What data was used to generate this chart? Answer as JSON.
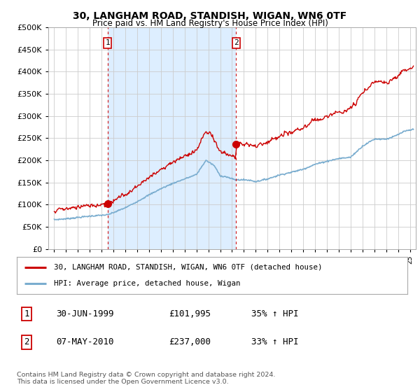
{
  "title": "30, LANGHAM ROAD, STANDISH, WIGAN, WN6 0TF",
  "subtitle": "Price paid vs. HM Land Registry's House Price Index (HPI)",
  "background_color": "#ffffff",
  "grid_color": "#cccccc",
  "sale1_date": 1999.5,
  "sale1_price": 101995,
  "sale1_label": "1",
  "sale2_date": 2010.35,
  "sale2_price": 237000,
  "sale2_label": "2",
  "legend_line1": "30, LANGHAM ROAD, STANDISH, WIGAN, WN6 0TF (detached house)",
  "legend_line2": "HPI: Average price, detached house, Wigan",
  "table_row1": [
    "1",
    "30-JUN-1999",
    "£101,995",
    "35% ↑ HPI"
  ],
  "table_row2": [
    "2",
    "07-MAY-2010",
    "£237,000",
    "33% ↑ HPI"
  ],
  "footnote": "Contains HM Land Registry data © Crown copyright and database right 2024.\nThis data is licensed under the Open Government Licence v3.0.",
  "ylim": [
    0,
    500000
  ],
  "xlim": [
    1994.5,
    2025.5
  ],
  "red_color": "#cc0000",
  "blue_color": "#7aadcf",
  "shade_color": "#ddeeff",
  "dashed_color": "#cc0000"
}
